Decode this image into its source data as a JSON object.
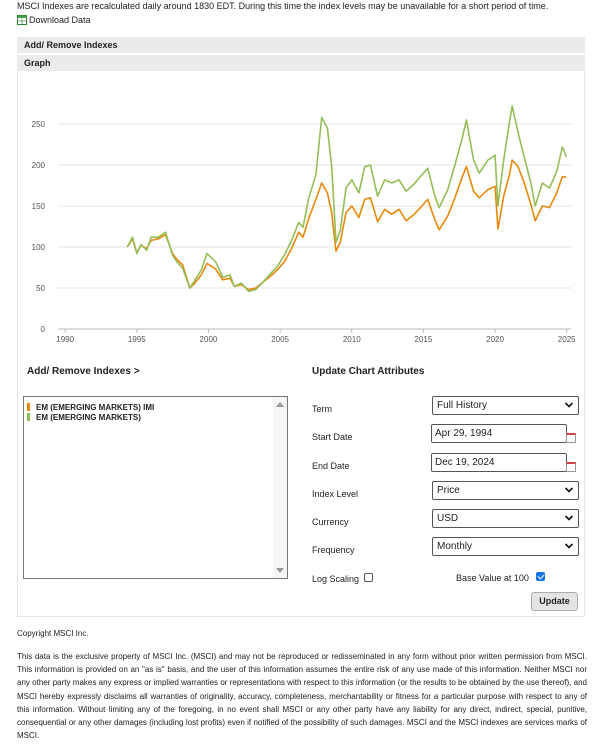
{
  "notice": "MSCI Indexes are recalculated daily around 1830 EDT. During this time the index levels may be unavailable for a short period of time.",
  "download_label": "Download Data",
  "add_remove_bar": "Add/ Remove Indexes",
  "graph_bar": "Graph",
  "add_remove_heading": "Add/ Remove Indexes >",
  "update_heading": "Update Chart Attributes",
  "indexes": [
    {
      "name": "EM (EMERGING MARKETS) IMI",
      "color": "#e8890c"
    },
    {
      "name": "EM (EMERGING MARKETS)",
      "color": "#95bd58"
    }
  ],
  "attributes": {
    "term_label": "Term",
    "term_value": "Full History",
    "start_label": "Start Date",
    "start_value": "Apr 29, 1994",
    "end_label": "End Date",
    "end_value": "Dec 19, 2024",
    "level_label": "Index Level",
    "level_value": "Price",
    "currency_label": "Currency",
    "currency_value": "USD",
    "frequency_label": "Frequency",
    "frequency_value": "Monthly",
    "log_label": "Log Scaling",
    "log_checked": false,
    "base_label": "Base Value at 100",
    "base_checked": true
  },
  "update_button": "Update",
  "copyright": "Copyright MSCI Inc.",
  "disclaimer": "This data is the exclusive property of MSCI Inc. (MSCI) and may not be reproduced or redisseminated in any form without prior written permission from MSCI. This information is provided on an \"as is\" basis, and the user of this information assumes the entire risk of any use made of this information. Neither MSCI nor any other party makes any express or implied warranties or representations with respect to this information (or the results to be obtained by the use thereof), and MSCI hereby expressly disclaims all warranties of originality, accuracy, completeness, merchantability or fitness for a particular purpose with respect to any of this information. Without limiting any of the foregoing, in no event shall MSCI or any other party have any liability for any direct, indirect, special, punitive, consequential or any other damages (including lost profits) even if notified of the possibility of such damages. MSCI and the MSCI indexes are services marks of MSCI.",
  "chart_data": {
    "type": "line",
    "title": "",
    "xlabel": "",
    "ylabel": "",
    "xlim": [
      1989.5,
      2025.3
    ],
    "ylim": [
      0,
      300
    ],
    "x_ticks": [
      1990,
      1995,
      2000,
      2005,
      2010,
      2015,
      2020,
      2025
    ],
    "y_ticks": [
      0,
      50,
      100,
      150,
      200,
      250
    ],
    "grid": true,
    "series": [
      {
        "name": "EM (EMERGING MARKETS) IMI",
        "color": "#e8890c",
        "x": [
          1994.33,
          1994.7,
          1995.0,
          1995.3,
          1995.7,
          1996.0,
          1996.5,
          1997.0,
          1997.5,
          1997.8,
          1998.2,
          1998.7,
          1999.0,
          1999.5,
          1999.9,
          2000.5,
          2001.0,
          2001.5,
          2001.8,
          2002.3,
          2002.8,
          2003.3,
          2003.8,
          2004.3,
          2004.8,
          2005.3,
          2005.8,
          2006.3,
          2006.6,
          2007.0,
          2007.5,
          2007.9,
          2008.3,
          2008.6,
          2008.9,
          2009.2,
          2009.6,
          2010.0,
          2010.5,
          2010.9,
          2011.3,
          2011.8,
          2012.3,
          2012.8,
          2013.3,
          2013.8,
          2014.3,
          2014.8,
          2015.3,
          2015.8,
          2016.1,
          2016.7,
          2017.2,
          2017.7,
          2018.0,
          2018.5,
          2018.9,
          2019.5,
          2020.0,
          2020.2,
          2020.6,
          2021.0,
          2021.2,
          2021.6,
          2022.0,
          2022.5,
          2022.8,
          2023.3,
          2023.8,
          2024.3,
          2024.7,
          2024.97
        ],
        "values": [
          100,
          110,
          93,
          102,
          98,
          108,
          110,
          115,
          92,
          85,
          78,
          50,
          55,
          66,
          80,
          73,
          60,
          62,
          52,
          54,
          48,
          50,
          57,
          64,
          72,
          82,
          98,
          118,
          112,
          135,
          158,
          178,
          166,
          142,
          95,
          106,
          142,
          150,
          136,
          158,
          160,
          131,
          146,
          140,
          146,
          132,
          139,
          148,
          158,
          133,
          121,
          138,
          160,
          185,
          198,
          168,
          160,
          170,
          174,
          122,
          162,
          188,
          206,
          198,
          180,
          152,
          132,
          150,
          148,
          166,
          186,
          185
        ]
      },
      {
        "name": "EM (EMERGING MARKETS)",
        "color": "#95bd58",
        "x": [
          1994.33,
          1994.7,
          1995.0,
          1995.3,
          1995.7,
          1996.0,
          1996.5,
          1997.0,
          1997.5,
          1997.8,
          1998.2,
          1998.7,
          1999.0,
          1999.5,
          1999.9,
          2000.5,
          2001.0,
          2001.5,
          2001.8,
          2002.3,
          2002.8,
          2003.3,
          2003.8,
          2004.3,
          2004.8,
          2005.3,
          2005.8,
          2006.3,
          2006.6,
          2007.0,
          2007.5,
          2007.9,
          2008.3,
          2008.6,
          2008.9,
          2009.2,
          2009.6,
          2010.0,
          2010.5,
          2010.9,
          2011.3,
          2011.8,
          2012.3,
          2012.8,
          2013.3,
          2013.8,
          2014.3,
          2014.8,
          2015.3,
          2015.8,
          2016.1,
          2016.7,
          2017.2,
          2017.7,
          2018.0,
          2018.5,
          2018.9,
          2019.5,
          2020.0,
          2020.2,
          2020.6,
          2021.0,
          2021.2,
          2021.6,
          2022.0,
          2022.5,
          2022.8,
          2023.3,
          2023.8,
          2024.3,
          2024.7,
          2024.97
        ],
        "values": [
          100,
          112,
          92,
          103,
          96,
          112,
          112,
          118,
          90,
          82,
          74,
          50,
          58,
          72,
          92,
          82,
          63,
          66,
          52,
          56,
          46,
          48,
          57,
          67,
          76,
          90,
          108,
          130,
          124,
          160,
          188,
          258,
          245,
          198,
          106,
          120,
          172,
          182,
          166,
          198,
          200,
          162,
          182,
          178,
          182,
          168,
          176,
          186,
          196,
          162,
          148,
          170,
          200,
          232,
          255,
          206,
          190,
          206,
          212,
          150,
          206,
          252,
          272,
          240,
          212,
          178,
          150,
          178,
          172,
          192,
          222,
          210
        ]
      }
    ]
  }
}
